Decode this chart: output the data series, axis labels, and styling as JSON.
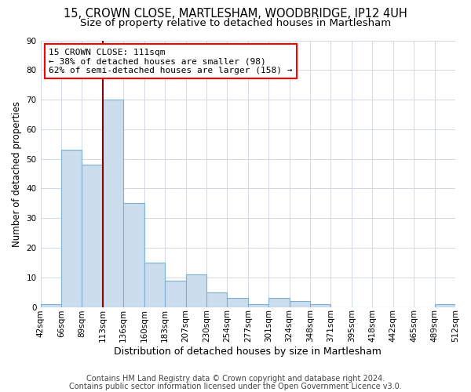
{
  "title_line1": "15, CROWN CLOSE, MARTLESHAM, WOODBRIDGE, IP12 4UH",
  "title_line2": "Size of property relative to detached houses in Martlesham",
  "xlabel": "Distribution of detached houses by size in Martlesham",
  "ylabel": "Number of detached properties",
  "bar_values": [
    1,
    53,
    48,
    70,
    35,
    15,
    9,
    11,
    5,
    3,
    1,
    3,
    2,
    1,
    0,
    0,
    0,
    0,
    0,
    1
  ],
  "bin_labels": [
    "42sqm",
    "66sqm",
    "89sqm",
    "113sqm",
    "136sqm",
    "160sqm",
    "183sqm",
    "207sqm",
    "230sqm",
    "254sqm",
    "277sqm",
    "301sqm",
    "324sqm",
    "348sqm",
    "371sqm",
    "395sqm",
    "418sqm",
    "442sqm",
    "465sqm",
    "489sqm",
    "512sqm"
  ],
  "bar_color": "#ccdded",
  "bar_edge_color": "#7bafd4",
  "grid_color": "#d0d8e8",
  "property_line_bin_index": 3.0,
  "annotation_text": "15 CROWN CLOSE: 111sqm\n← 38% of detached houses are smaller (98)\n62% of semi-detached houses are larger (158) →",
  "annotation_box_color": "white",
  "annotation_box_edge_color": "red",
  "vline_color": "#8b0000",
  "footer_line1": "Contains HM Land Registry data © Crown copyright and database right 2024.",
  "footer_line2": "Contains public sector information licensed under the Open Government Licence v3.0.",
  "ylim": [
    0,
    90
  ],
  "yticks": [
    0,
    10,
    20,
    30,
    40,
    50,
    60,
    70,
    80,
    90
  ],
  "title_fontsize": 10.5,
  "subtitle_fontsize": 9.5,
  "xlabel_fontsize": 9,
  "ylabel_fontsize": 8.5,
  "tick_fontsize": 7.5,
  "annotation_fontsize": 8,
  "footer_fontsize": 7
}
